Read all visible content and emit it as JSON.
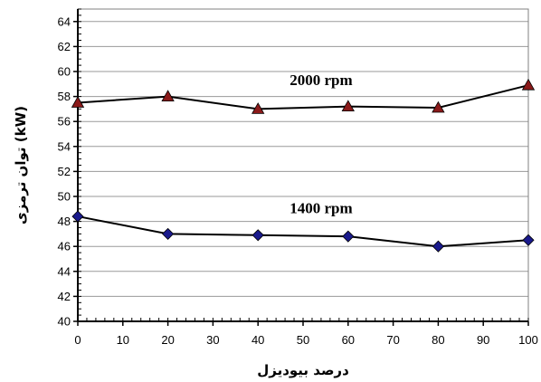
{
  "chart_data": {
    "type": "line",
    "xlabel": "درصد بیودیزل",
    "ylabel": "توان ترمزی (kW)",
    "xlim": [
      0,
      100
    ],
    "ylim": [
      40,
      65
    ],
    "x_ticks": [
      0,
      10,
      20,
      30,
      40,
      50,
      60,
      70,
      80,
      90,
      100
    ],
    "y_ticks": [
      40,
      42,
      44,
      46,
      48,
      50,
      52,
      54,
      56,
      58,
      60,
      62,
      64
    ],
    "grid": {
      "horizontal": true,
      "vertical": false
    },
    "x": [
      0,
      20,
      40,
      60,
      80,
      100
    ],
    "series": [
      {
        "name": "2000 rpm",
        "values": [
          57.5,
          58.0,
          57.0,
          57.2,
          57.1,
          58.9
        ],
        "color": "#8b1a1a",
        "marker": "triangle"
      },
      {
        "name": "1400 rpm",
        "values": [
          48.4,
          47.0,
          46.9,
          46.8,
          46.0,
          46.5
        ],
        "color": "#1a1a8c",
        "marker": "diamond"
      }
    ]
  }
}
